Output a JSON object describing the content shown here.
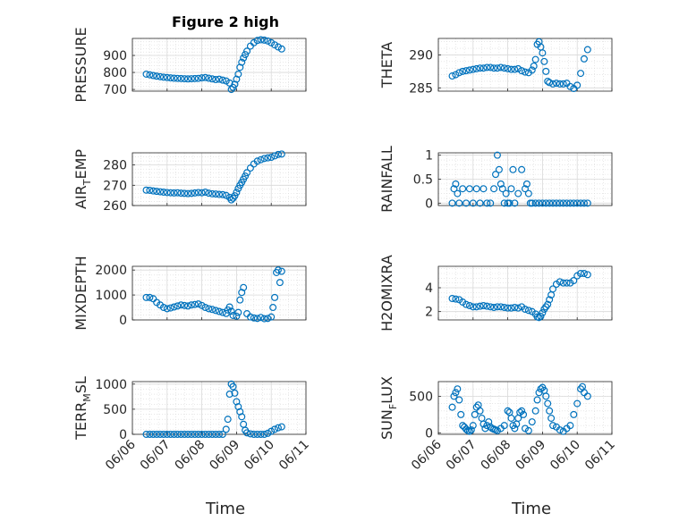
{
  "figure": {
    "title": "Figure 2 high",
    "xlabel": "Time",
    "x_ticks": [
      "06/06",
      "06/07",
      "06/08",
      "06/09",
      "06/10",
      "06/11"
    ]
  },
  "colors": {
    "marker": "#0072BD",
    "grid": "#d9d9d9",
    "axis": "#262626",
    "background": "#ffffff"
  },
  "chart_data": [
    {
      "type": "scatter",
      "id": "pressure",
      "ylabel": "PRESSURE",
      "ylim": [
        690,
        1000
      ],
      "yticks": [
        700,
        800,
        900
      ],
      "xlim": [
        0,
        5
      ],
      "x": [
        0.4,
        0.5,
        0.6,
        0.7,
        0.8,
        0.9,
        1.0,
        1.1,
        1.2,
        1.3,
        1.4,
        1.5,
        1.6,
        1.7,
        1.8,
        1.9,
        2.0,
        2.1,
        2.2,
        2.3,
        2.4,
        2.5,
        2.6,
        2.7,
        2.8,
        2.85,
        2.9,
        2.95,
        3.0,
        3.05,
        3.1,
        3.15,
        3.2,
        3.25,
        3.3,
        3.4,
        3.5,
        3.6,
        3.7,
        3.8,
        3.9,
        4.0,
        4.1,
        4.2,
        4.3
      ],
      "y": [
        790,
        786,
        782,
        778,
        775,
        772,
        770,
        768,
        766,
        765,
        764,
        763,
        762,
        763,
        764,
        765,
        768,
        770,
        766,
        762,
        758,
        760,
        755,
        750,
        738,
        700,
        712,
        730,
        760,
        790,
        830,
        860,
        885,
        905,
        925,
        955,
        975,
        988,
        992,
        990,
        985,
        975,
        962,
        950,
        938
      ]
    },
    {
      "type": "scatter",
      "id": "theta",
      "ylabel": "THETA",
      "ylim": [
        284.5,
        292.5
      ],
      "yticks": [
        285,
        290
      ],
      "xlim": [
        0,
        5
      ],
      "x": [
        0.4,
        0.5,
        0.6,
        0.7,
        0.8,
        0.9,
        1.0,
        1.1,
        1.2,
        1.3,
        1.4,
        1.5,
        1.6,
        1.7,
        1.8,
        1.9,
        2.0,
        2.1,
        2.2,
        2.3,
        2.4,
        2.5,
        2.6,
        2.7,
        2.75,
        2.8,
        2.85,
        2.9,
        2.95,
        3.0,
        3.05,
        3.1,
        3.15,
        3.2,
        3.3,
        3.4,
        3.5,
        3.6,
        3.7,
        3.8,
        3.9,
        4.0,
        4.1,
        4.2,
        4.3
      ],
      "y": [
        286.8,
        287.0,
        287.3,
        287.5,
        287.6,
        287.7,
        287.8,
        287.9,
        288.0,
        288.0,
        288.1,
        288.1,
        288.0,
        288.0,
        288.1,
        288.0,
        287.9,
        287.8,
        287.8,
        287.9,
        287.6,
        287.4,
        287.3,
        287.7,
        288.3,
        289.3,
        291.6,
        292.0,
        291.2,
        290.3,
        289.0,
        287.5,
        286.0,
        285.8,
        285.6,
        285.7,
        285.6,
        285.6,
        285.7,
        285.2,
        284.9,
        285.4,
        287.2,
        289.4,
        290.8
      ]
    },
    {
      "type": "scatter",
      "id": "air_temp",
      "ylabel": "AIR",
      "ylabel_sub": "T",
      "ylabel_tail": "EMP",
      "ylim": [
        260,
        286
      ],
      "yticks": [
        260,
        270,
        280
      ],
      "xlim": [
        0,
        5
      ],
      "x": [
        0.4,
        0.5,
        0.6,
        0.7,
        0.8,
        0.9,
        1.0,
        1.1,
        1.2,
        1.3,
        1.4,
        1.5,
        1.6,
        1.7,
        1.8,
        1.9,
        2.0,
        2.1,
        2.2,
        2.3,
        2.4,
        2.5,
        2.6,
        2.7,
        2.8,
        2.85,
        2.9,
        2.95,
        3.0,
        3.05,
        3.1,
        3.15,
        3.2,
        3.25,
        3.3,
        3.4,
        3.5,
        3.6,
        3.7,
        3.8,
        3.9,
        4.0,
        4.1,
        4.2,
        4.3
      ],
      "y": [
        267.6,
        267.5,
        267.2,
        267.0,
        266.8,
        266.6,
        266.4,
        266.3,
        266.2,
        266.3,
        266.1,
        266.0,
        265.9,
        266.0,
        266.2,
        266.4,
        266.3,
        266.6,
        266.1,
        265.8,
        265.7,
        265.5,
        265.4,
        265.0,
        264.0,
        262.8,
        263.6,
        264.8,
        266.5,
        268.4,
        270.0,
        271.4,
        273.0,
        274.5,
        276.2,
        278.5,
        280.5,
        281.9,
        282.6,
        283.2,
        283.5,
        283.8,
        284.5,
        285.2,
        285.4
      ]
    },
    {
      "type": "scatter",
      "id": "rainfall",
      "ylabel": "RAINFALL",
      "ylim": [
        -0.05,
        1.05
      ],
      "yticks": [
        0,
        0.5,
        1
      ],
      "xlim": [
        0,
        5
      ],
      "x": [
        0.4,
        0.45,
        0.5,
        0.55,
        0.6,
        0.7,
        0.8,
        0.9,
        1.0,
        1.1,
        1.2,
        1.3,
        1.4,
        1.5,
        1.6,
        1.65,
        1.7,
        1.75,
        1.8,
        1.85,
        1.9,
        1.95,
        2.0,
        2.05,
        2.1,
        2.15,
        2.2,
        2.3,
        2.4,
        2.5,
        2.55,
        2.6,
        2.65,
        2.7,
        2.8,
        2.9,
        3.0,
        3.1,
        3.2,
        3.3,
        3.4,
        3.5,
        3.6,
        3.7,
        3.8,
        3.9,
        4.0,
        4.1,
        4.2,
        4.3
      ],
      "y": [
        0.0,
        0.3,
        0.4,
        0.2,
        0.0,
        0.3,
        0.0,
        0.3,
        0.0,
        0.3,
        0.0,
        0.3,
        0.0,
        0.0,
        0.3,
        0.6,
        1.0,
        0.7,
        0.4,
        0.3,
        0.0,
        0.2,
        0.0,
        0.0,
        0.3,
        0.7,
        0.0,
        0.2,
        0.7,
        0.3,
        0.4,
        0.2,
        0.0,
        0.0,
        0.0,
        0.0,
        0.0,
        0.0,
        0.0,
        0.0,
        0.0,
        0.0,
        0.0,
        0.0,
        0.0,
        0.0,
        0.0,
        0.0,
        0.0,
        0.0
      ]
    },
    {
      "type": "scatter",
      "id": "mixdepth",
      "ylabel": "MIXDEPTH",
      "ylim": [
        0,
        2150
      ],
      "yticks": [
        0,
        1000,
        2000
      ],
      "xlim": [
        0,
        5
      ],
      "x": [
        0.4,
        0.5,
        0.6,
        0.7,
        0.8,
        0.9,
        1.0,
        1.1,
        1.2,
        1.3,
        1.4,
        1.5,
        1.6,
        1.7,
        1.8,
        1.9,
        2.0,
        2.1,
        2.2,
        2.3,
        2.4,
        2.5,
        2.6,
        2.7,
        2.75,
        2.8,
        2.85,
        2.9,
        3.0,
        3.05,
        3.1,
        3.15,
        3.2,
        3.3,
        3.4,
        3.5,
        3.6,
        3.7,
        3.8,
        3.9,
        4.0,
        4.05,
        4.1,
        4.15,
        4.2,
        4.25,
        4.3
      ],
      "y": [
        900,
        900,
        850,
        700,
        600,
        500,
        450,
        480,
        520,
        560,
        600,
        580,
        560,
        600,
        620,
        640,
        580,
        500,
        450,
        420,
        380,
        340,
        300,
        260,
        400,
        520,
        350,
        180,
        150,
        300,
        800,
        1100,
        1300,
        250,
        120,
        80,
        60,
        100,
        50,
        60,
        120,
        500,
        900,
        1900,
        2000,
        1500,
        1950
      ]
    },
    {
      "type": "scatter",
      "id": "h2omixra",
      "ylabel": "H2OMIXRA",
      "ylim": [
        1.3,
        5.8
      ],
      "yticks": [
        2,
        4
      ],
      "xlim": [
        0,
        5
      ],
      "x": [
        0.4,
        0.5,
        0.6,
        0.7,
        0.8,
        0.9,
        1.0,
        1.1,
        1.2,
        1.3,
        1.4,
        1.5,
        1.6,
        1.7,
        1.8,
        1.9,
        2.0,
        2.1,
        2.2,
        2.3,
        2.4,
        2.5,
        2.6,
        2.7,
        2.8,
        2.85,
        2.9,
        2.95,
        3.0,
        3.05,
        3.1,
        3.15,
        3.2,
        3.25,
        3.3,
        3.4,
        3.5,
        3.6,
        3.7,
        3.8,
        3.9,
        4.0,
        4.1,
        4.2,
        4.3
      ],
      "y": [
        3.1,
        3.05,
        3.0,
        2.8,
        2.6,
        2.5,
        2.4,
        2.4,
        2.45,
        2.5,
        2.45,
        2.4,
        2.35,
        2.4,
        2.4,
        2.35,
        2.3,
        2.3,
        2.35,
        2.3,
        2.4,
        2.2,
        2.1,
        2.0,
        1.8,
        1.55,
        1.5,
        1.6,
        1.9,
        2.2,
        2.4,
        2.6,
        3.0,
        3.4,
        3.9,
        4.3,
        4.5,
        4.4,
        4.4,
        4.4,
        4.6,
        5.0,
        5.2,
        5.2,
        5.1
      ]
    },
    {
      "type": "scatter",
      "id": "terr_msl",
      "ylabel": "TERR",
      "ylabel_sub": "M",
      "ylabel_tail": "SL",
      "ylim": [
        0,
        1050
      ],
      "yticks": [
        0,
        500,
        1000
      ],
      "xlim": [
        0,
        5
      ],
      "x": [
        0.4,
        0.5,
        0.6,
        0.7,
        0.8,
        0.9,
        1.0,
        1.1,
        1.2,
        1.3,
        1.4,
        1.5,
        1.6,
        1.7,
        1.8,
        1.9,
        2.0,
        2.1,
        2.2,
        2.3,
        2.4,
        2.5,
        2.6,
        2.7,
        2.75,
        2.8,
        2.85,
        2.9,
        2.95,
        3.0,
        3.05,
        3.1,
        3.15,
        3.2,
        3.25,
        3.3,
        3.4,
        3.5,
        3.6,
        3.7,
        3.8,
        3.9,
        4.0,
        4.1,
        4.2,
        4.3
      ],
      "y": [
        0,
        0,
        0,
        0,
        0,
        0,
        0,
        0,
        0,
        0,
        0,
        0,
        0,
        0,
        0,
        0,
        0,
        0,
        0,
        0,
        0,
        0,
        0,
        100,
        300,
        800,
        1000,
        950,
        820,
        650,
        550,
        450,
        350,
        200,
        80,
        30,
        10,
        0,
        0,
        0,
        0,
        20,
        60,
        100,
        130,
        150
      ]
    },
    {
      "type": "scatter",
      "id": "sun_flux",
      "ylabel": "SUN",
      "ylabel_sub": "F",
      "ylabel_tail": "LUX",
      "ylim": [
        -20,
        700
      ],
      "yticks": [
        0,
        500
      ],
      "xlim": [
        0,
        5
      ],
      "x": [
        0.4,
        0.45,
        0.5,
        0.55,
        0.6,
        0.65,
        0.7,
        0.75,
        0.8,
        0.85,
        0.9,
        0.95,
        1.0,
        1.05,
        1.1,
        1.15,
        1.2,
        1.25,
        1.3,
        1.35,
        1.4,
        1.45,
        1.5,
        1.55,
        1.6,
        1.65,
        1.7,
        1.8,
        1.9,
        2.0,
        2.05,
        2.1,
        2.15,
        2.2,
        2.25,
        2.3,
        2.35,
        2.4,
        2.45,
        2.5,
        2.6,
        2.7,
        2.8,
        2.85,
        2.9,
        2.95,
        3.0,
        3.05,
        3.1,
        3.15,
        3.2,
        3.25,
        3.3,
        3.4,
        3.5,
        3.6,
        3.7,
        3.8,
        3.9,
        4.0,
        4.1,
        4.15,
        4.2,
        4.3
      ],
      "y": [
        350,
        500,
        550,
        600,
        450,
        250,
        100,
        80,
        50,
        30,
        20,
        40,
        100,
        250,
        350,
        380,
        300,
        200,
        120,
        60,
        100,
        150,
        80,
        60,
        50,
        40,
        30,
        60,
        100,
        300,
        280,
        200,
        100,
        60,
        120,
        200,
        280,
        300,
        250,
        60,
        30,
        150,
        300,
        450,
        550,
        600,
        620,
        580,
        500,
        400,
        300,
        200,
        100,
        80,
        40,
        20,
        60,
        100,
        250,
        400,
        600,
        630,
        550,
        500
      ]
    }
  ]
}
